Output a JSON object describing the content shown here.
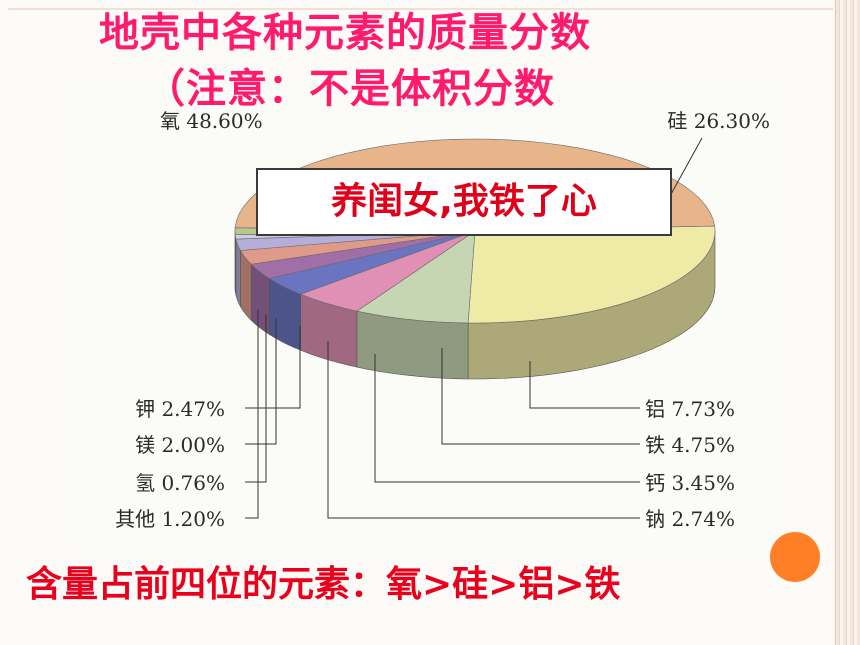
{
  "slide": {
    "title_line1": "地壳中各种元素的质量分数",
    "title_line2": "（注意：不是体积分数",
    "mnemonic": "养闺女,我铁了心",
    "conclusion": "含量占前四位的元素：氧>硅>铝>铁"
  },
  "chart_data": {
    "type": "pie",
    "title": "",
    "labels": [
      "氧",
      "硅",
      "铝",
      "铁",
      "钙",
      "钠",
      "钾",
      "镁",
      "氢",
      "其他"
    ],
    "values": [
      48.6,
      26.3,
      7.73,
      4.75,
      3.45,
      2.74,
      2.47,
      2.0,
      0.76,
      1.2
    ],
    "display_labels": [
      "氧 48.60%",
      "硅 26.30%",
      "铝 7.73%",
      "铁 4.75%",
      "钙 3.45%",
      "钠 2.74%",
      "钾 2.47%",
      "镁 2.00%",
      "氢 0.76%",
      "其他 1.20%"
    ],
    "colors": [
      "#e8b48a",
      "#efeaa6",
      "#c7d6b2",
      "#e090b4",
      "#6b74c0",
      "#a06fa7",
      "#e09a8a",
      "#b6aed8",
      "#c6d0e0",
      "#b8c88a"
    ],
    "unit": "%",
    "style": "3d-pie"
  }
}
